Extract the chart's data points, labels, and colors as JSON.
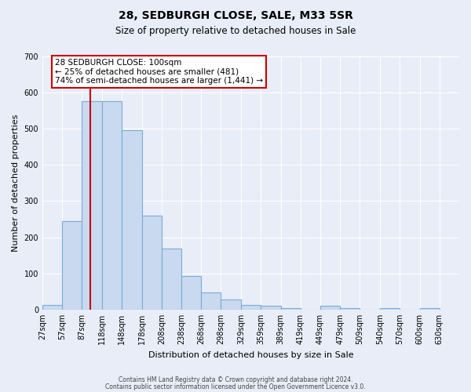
{
  "title": "28, SEDBURGH CLOSE, SALE, M33 5SR",
  "subtitle": "Size of property relative to detached houses in Sale",
  "xlabel": "Distribution of detached houses by size in Sale",
  "ylabel": "Number of detached properties",
  "bin_edges": [
    27,
    57,
    87,
    118,
    148,
    178,
    208,
    238,
    268,
    298,
    329,
    359,
    389,
    419,
    449,
    479,
    509,
    540,
    570,
    600,
    630
  ],
  "bar_values": [
    12,
    245,
    575,
    575,
    495,
    260,
    168,
    92,
    48,
    27,
    13,
    10,
    5,
    0,
    10,
    5,
    0,
    5,
    0,
    5
  ],
  "ylim": [
    0,
    700
  ],
  "yticks": [
    0,
    100,
    200,
    300,
    400,
    500,
    600,
    700
  ],
  "xlim": [
    27,
    660
  ],
  "tick_labels": [
    "27sqm",
    "57sqm",
    "87sqm",
    "118sqm",
    "148sqm",
    "178sqm",
    "208sqm",
    "238sqm",
    "268sqm",
    "298sqm",
    "329sqm",
    "359sqm",
    "389sqm",
    "419sqm",
    "449sqm",
    "479sqm",
    "509sqm",
    "540sqm",
    "570sqm",
    "600sqm",
    "630sqm"
  ],
  "bar_facecolor": "#c9d9ef",
  "bar_edgecolor": "#7aadd4",
  "red_line_x": 100,
  "annotation_text_line1": "28 SEDBURGH CLOSE: 100sqm",
  "annotation_text_line2": "← 25% of detached houses are smaller (481)",
  "annotation_text_line3": "74% of semi-detached houses are larger (1,441) →",
  "box_facecolor": "white",
  "box_edgecolor": "#cc0000",
  "background_color": "#e8edf8",
  "grid_color": "white",
  "footnote1": "Contains HM Land Registry data © Crown copyright and database right 2024.",
  "footnote2": "Contains public sector information licensed under the Open Government Licence v3.0.",
  "title_fontsize": 10,
  "subtitle_fontsize": 8.5,
  "axis_label_fontsize": 8,
  "tick_fontsize": 7,
  "annotation_fontsize": 7.5
}
